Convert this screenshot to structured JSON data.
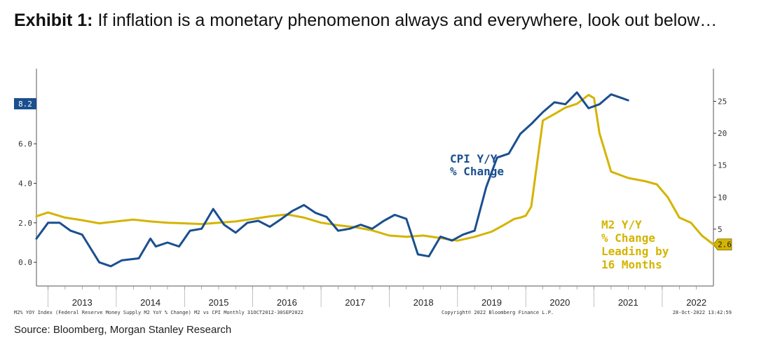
{
  "header": {
    "title_bold": "Exhibit 1:",
    "title_rest": "If inflation is a monetary phenomenon always and everywhere, look out below…"
  },
  "source": "Source: Bloomberg, Morgan Stanley Research",
  "footer": {
    "left": "M2% YOY Index (Federal Reserve Money Supply M2 YoY % Change) M2 vs CPI  Monthly 31OCT2012-30SEP2022",
    "center": "Copyright© 2022 Bloomberg Finance L.P.",
    "right": "28-Oct-2022 13:42:59"
  },
  "annotations": {
    "cpi_line1": "CPI Y/Y",
    "cpi_line2": "% Change",
    "m2_line1": "M2 Y/Y",
    "m2_line2": "% Change",
    "m2_line3": "Leading by",
    "m2_line4": "16 Months"
  },
  "colors": {
    "cpi": "#1a4f8f",
    "m2": "#d4b400",
    "axis": "#555555",
    "badge_cpi": "#1a4f8f",
    "badge_m2": "#d4b400"
  },
  "chart_data": {
    "type": "line",
    "title": "",
    "x_start": 2012.83,
    "x_end": 2022.75,
    "x_ticks": [
      "2013",
      "2014",
      "2015",
      "2016",
      "2017",
      "2018",
      "2019",
      "2020",
      "2021",
      "2022"
    ],
    "left_axis": {
      "ticks": [
        0.0,
        2.0,
        4.0,
        6.0
      ],
      "tick_labels": [
        "0.0",
        "2.0",
        "4.0",
        "6.0"
      ],
      "range": [
        -1.2,
        9.8
      ],
      "last_value": "8.2"
    },
    "right_axis": {
      "ticks": [
        5,
        10,
        15,
        20,
        25
      ],
      "tick_labels": [
        "5",
        "10",
        "15",
        "20",
        "25"
      ],
      "range": [
        -3.9,
        30.1
      ],
      "last_value": "2.6"
    },
    "series": [
      {
        "name": "CPI Y/Y % Change",
        "axis": "left",
        "x": [
          2012.83,
          2013.0,
          2013.17,
          2013.33,
          2013.5,
          2013.75,
          2013.92,
          2014.08,
          2014.33,
          2014.5,
          2014.58,
          2014.75,
          2014.92,
          2015.08,
          2015.25,
          2015.42,
          2015.58,
          2015.75,
          2015.92,
          2016.08,
          2016.25,
          2016.42,
          2016.58,
          2016.75,
          2016.92,
          2017.08,
          2017.25,
          2017.42,
          2017.58,
          2017.75,
          2017.92,
          2018.08,
          2018.25,
          2018.42,
          2018.58,
          2018.75,
          2018.92,
          2019.08,
          2019.25,
          2019.42,
          2019.58,
          2019.75,
          2019.92,
          2020.08,
          2020.25,
          2020.42,
          2020.58,
          2020.75,
          2020.92,
          2021.08,
          2021.25,
          2021.42,
          2021.5
        ],
        "y": [
          1.2,
          2.0,
          2.0,
          1.6,
          1.4,
          0.0,
          -0.2,
          0.1,
          0.2,
          1.2,
          0.8,
          1.0,
          0.8,
          1.6,
          1.7,
          2.7,
          1.9,
          1.5,
          2.0,
          2.1,
          1.8,
          2.2,
          2.6,
          2.9,
          2.5,
          2.3,
          1.6,
          1.7,
          1.9,
          1.7,
          2.1,
          2.4,
          2.2,
          0.4,
          0.3,
          1.3,
          1.1,
          1.4,
          1.6,
          3.8,
          5.3,
          5.5,
          6.5,
          7.0,
          7.6,
          8.1,
          8.0,
          8.6,
          7.8,
          8.0,
          8.5,
          8.3,
          8.2
        ]
      },
      {
        "name": "M2 Y/Y % Change",
        "axis": "right",
        "x": [
          2012.83,
          2013.0,
          2013.25,
          2013.5,
          2013.75,
          2014.0,
          2014.25,
          2014.5,
          2014.75,
          2015.0,
          2015.25,
          2015.5,
          2015.75,
          2016.0,
          2016.25,
          2016.5,
          2016.75,
          2017.0,
          2017.25,
          2017.5,
          2017.75,
          2018.0,
          2018.25,
          2018.5,
          2018.75,
          2019.0,
          2019.25,
          2019.5,
          2019.67,
          2019.83,
          2019.92,
          2020.0,
          2020.08,
          2020.25,
          2020.42,
          2020.58,
          2020.75,
          2020.92,
          2021.0,
          2021.08,
          2021.25,
          2021.5,
          2021.75,
          2021.92,
          2022.08,
          2022.25,
          2022.42,
          2022.58,
          2022.75
        ],
        "y": [
          7.0,
          7.6,
          6.8,
          6.4,
          5.9,
          6.2,
          6.5,
          6.2,
          6.0,
          5.9,
          5.8,
          6.0,
          6.2,
          6.6,
          7.0,
          7.3,
          6.8,
          6.0,
          5.6,
          5.3,
          4.8,
          4.0,
          3.8,
          4.0,
          3.6,
          3.2,
          3.8,
          4.6,
          5.6,
          6.6,
          6.8,
          7.1,
          8.5,
          22.0,
          23.0,
          24.0,
          24.6,
          26.0,
          25.5,
          20.0,
          14.0,
          13.0,
          12.5,
          12.0,
          10.0,
          6.8,
          6.0,
          4.0,
          2.6
        ]
      }
    ]
  }
}
